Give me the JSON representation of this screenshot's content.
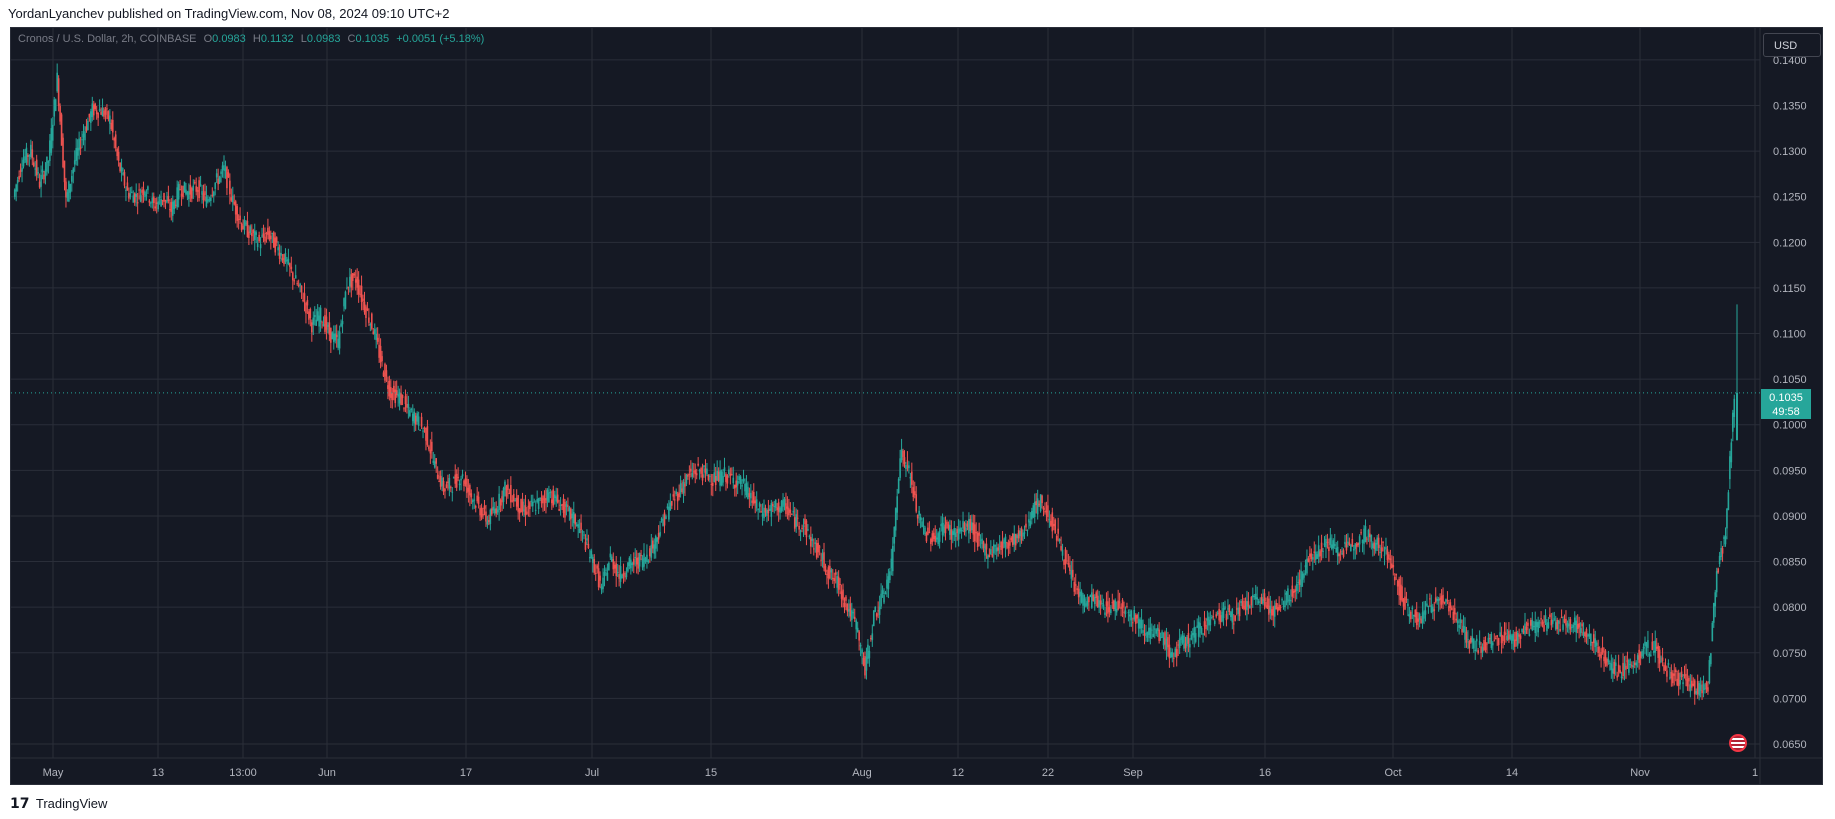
{
  "header": {
    "published_text": "YordanLyanchev published on TradingView.com, Nov 08, 2024 09:10 UTC+2"
  },
  "legend": {
    "symbol": "Cronos / U.S. Dollar, 2h, COINBASE",
    "open_label": "O",
    "open": "0.0983",
    "high_label": "H",
    "high": "0.1132",
    "low_label": "L",
    "low": "0.0983",
    "close_label": "C",
    "close": "0.1035",
    "change": "+0.0051 (+5.18%)"
  },
  "currency_button": "USD",
  "last_price": {
    "value": "0.1035",
    "countdown": "49:58"
  },
  "footer": {
    "logo_glyph": "𝟭𝟳",
    "brand": "TradingView"
  },
  "colors": {
    "background": "#151924",
    "grid": "#2a2e39",
    "up": "#26a69a",
    "down": "#ef5350",
    "axis_text": "#b2b5be",
    "price_tag": "#26a69a"
  },
  "chart_data": {
    "type": "candlestick",
    "title": "Cronos / U.S. Dollar, 2h, COINBASE",
    "ylim": [
      0.0605,
      0.1435
    ],
    "y_ticks": [
      "0.1400",
      "0.1350",
      "0.1300",
      "0.1250",
      "0.1200",
      "0.1150",
      "0.1100",
      "0.1050",
      "0.1000",
      "0.0950",
      "0.0900",
      "0.0850",
      "0.0800",
      "0.0750",
      "0.0700",
      "0.0650"
    ],
    "x_ticks": [
      "May",
      "13",
      "13:00",
      "Jun",
      "17",
      "Jul",
      "15",
      "Aug",
      "12",
      "22",
      "Sep",
      "16",
      "Oct",
      "14",
      "Nov",
      "1"
    ],
    "last_price": 0.1035,
    "grid": true,
    "series": [
      {
        "values": [
          [
            "Apr 26",
            0.125
          ],
          [
            "Apr 27",
            0.129
          ],
          [
            "Apr 28",
            0.13
          ],
          [
            "Apr 29",
            0.1265
          ],
          [
            "Apr 30",
            0.129
          ],
          [
            "May 1",
            0.138
          ],
          [
            "May 2",
            0.1245
          ],
          [
            "May 3",
            0.129
          ],
          [
            "May 4",
            0.132
          ],
          [
            "May 5",
            0.1345
          ],
          [
            "May 6",
            0.1345
          ],
          [
            "May 7",
            0.1335
          ],
          [
            "May 8",
            0.1285
          ],
          [
            "May 9",
            0.1255
          ],
          [
            "May 10",
            0.125
          ],
          [
            "May 11",
            0.126
          ],
          [
            "May 12",
            0.124
          ],
          [
            "May 13",
            0.125
          ],
          [
            "May 14",
            0.1235
          ],
          [
            "May 15",
            0.126
          ],
          [
            "May 16",
            0.1255
          ],
          [
            "May 17",
            0.126
          ],
          [
            "May 18",
            0.1245
          ],
          [
            "May 19",
            0.1265
          ],
          [
            "May 20",
            0.128
          ],
          [
            "May 21",
            0.1245
          ],
          [
            "May 22",
            0.122
          ],
          [
            "May 23",
            0.121
          ],
          [
            "May 24",
            0.12
          ],
          [
            "May 25",
            0.121
          ],
          [
            "May 26",
            0.1195
          ],
          [
            "May 27",
            0.118
          ],
          [
            "May 28",
            0.116
          ],
          [
            "May 29",
            0.114
          ],
          [
            "May 30",
            0.111
          ],
          [
            "May 31",
            0.112
          ],
          [
            "Jun 1",
            0.11
          ],
          [
            "Jun 2",
            0.109
          ],
          [
            "Jun 3",
            0.1155
          ],
          [
            "Jun 4",
            0.116
          ],
          [
            "Jun 5",
            0.113
          ],
          [
            "Jun 6",
            0.1105
          ],
          [
            "Jun 7",
            0.1065
          ],
          [
            "Jun 8",
            0.1035
          ],
          [
            "Jun 9",
            0.103
          ],
          [
            "Jun 10",
            0.1015
          ],
          [
            "Jun 11",
            0.1005
          ],
          [
            "Jun 12",
            0.099
          ],
          [
            "Jun 13",
            0.0955
          ],
          [
            "Jun 14",
            0.093
          ],
          [
            "Jun 15",
            0.0935
          ],
          [
            "Jun 16",
            0.0945
          ],
          [
            "Jun 17",
            0.0925
          ],
          [
            "Jun 18",
            0.091
          ],
          [
            "Jun 19",
            0.0895
          ],
          [
            "Jun 20",
            0.091
          ],
          [
            "Jun 21",
            0.093
          ],
          [
            "Jun 22",
            0.092
          ],
          [
            "Jun 23",
            0.0905
          ],
          [
            "Jun 24",
            0.091
          ],
          [
            "Jun 25",
            0.0915
          ],
          [
            "Jun 26",
            0.0925
          ],
          [
            "Jun 27",
            0.0915
          ],
          [
            "Jun 28",
            0.0905
          ],
          [
            "Jun 29",
            0.0895
          ],
          [
            "Jun 30",
            0.0875
          ],
          [
            "Jul 1",
            0.085
          ],
          [
            "Jul 2",
            0.082
          ],
          [
            "Jul 3",
            0.0855
          ],
          [
            "Jul 4",
            0.0835
          ],
          [
            "Jul 5",
            0.0845
          ],
          [
            "Jul 6",
            0.085
          ],
          [
            "Jul 7",
            0.0855
          ],
          [
            "Jul 8",
            0.087
          ],
          [
            "Jul 9",
            0.0895
          ],
          [
            "Jul 10",
            0.0915
          ],
          [
            "Jul 11",
            0.093
          ],
          [
            "Jul 12",
            0.0945
          ],
          [
            "Jul 13",
            0.095
          ],
          [
            "Jul 14",
            0.0945
          ],
          [
            "Jul 15",
            0.094
          ],
          [
            "Jul 16",
            0.0945
          ],
          [
            "Jul 17",
            0.094
          ],
          [
            "Jul 18",
            0.0935
          ],
          [
            "Jul 19",
            0.092
          ],
          [
            "Jul 20",
            0.0905
          ],
          [
            "Jul 21",
            0.0905
          ],
          [
            "Jul 22",
            0.091
          ],
          [
            "Jul 23",
            0.091
          ],
          [
            "Jul 24",
            0.0895
          ],
          [
            "Jul 25",
            0.089
          ],
          [
            "Jul 26",
            0.087
          ],
          [
            "Jul 27",
            0.0855
          ],
          [
            "Jul 28",
            0.0835
          ],
          [
            "Jul 29",
            0.0825
          ],
          [
            "Jul 30",
            0.08
          ],
          [
            "Jul 31",
            0.078
          ],
          [
            "Aug 1",
            0.073
          ],
          [
            "Aug 2",
            0.079
          ],
          [
            "Aug 3",
            0.081
          ],
          [
            "Aug 4",
            0.0845
          ],
          [
            "Aug 5",
            0.097
          ],
          [
            "Aug 6",
            0.095
          ],
          [
            "Aug 7",
            0.09
          ],
          [
            "Aug 8",
            0.088
          ],
          [
            "Aug 9",
            0.0875
          ],
          [
            "Aug 10",
            0.089
          ],
          [
            "Aug 11",
            0.088
          ],
          [
            "Aug 12",
            0.0885
          ],
          [
            "Aug 13",
            0.089
          ],
          [
            "Aug 14",
            0.087
          ],
          [
            "Aug 15",
            0.086
          ],
          [
            "Aug 16",
            0.0865
          ],
          [
            "Aug 17",
            0.087
          ],
          [
            "Aug 18",
            0.0875
          ],
          [
            "Aug 19",
            0.088
          ],
          [
            "Aug 20",
            0.0905
          ],
          [
            "Aug 21",
            0.0915
          ],
          [
            "Aug 22",
            0.09
          ],
          [
            "Aug 23",
            0.0875
          ],
          [
            "Aug 24",
            0.0845
          ],
          [
            "Aug 25",
            0.082
          ],
          [
            "Aug 26",
            0.0805
          ],
          [
            "Aug 27",
            0.081
          ],
          [
            "Aug 28",
            0.08
          ],
          [
            "Aug 29",
            0.08
          ],
          [
            "Aug 30",
            0.0805
          ],
          [
            "Aug 31",
            0.0795
          ],
          [
            "Sep 1",
            0.0785
          ],
          [
            "Sep 2",
            0.0775
          ],
          [
            "Sep 3",
            0.077
          ],
          [
            "Sep 4",
            0.0765
          ],
          [
            "Sep 5",
            0.0745
          ],
          [
            "Sep 6",
            0.076
          ],
          [
            "Sep 7",
            0.0765
          ],
          [
            "Sep 8",
            0.0775
          ],
          [
            "Sep 9",
            0.0785
          ],
          [
            "Sep 10",
            0.079
          ],
          [
            "Sep 11",
            0.0795
          ],
          [
            "Sep 12",
            0.079
          ],
          [
            "Sep 13",
            0.08
          ],
          [
            "Sep 14",
            0.0805
          ],
          [
            "Sep 15",
            0.081
          ],
          [
            "Sep 16",
            0.08
          ],
          [
            "Sep 17",
            0.0795
          ],
          [
            "Sep 18",
            0.081
          ],
          [
            "Sep 19",
            0.082
          ],
          [
            "Sep 20",
            0.084
          ],
          [
            "Sep 21",
            0.086
          ],
          [
            "Sep 22",
            0.0865
          ],
          [
            "Sep 23",
            0.087
          ],
          [
            "Sep 24",
            0.086
          ],
          [
            "Sep 25",
            0.0865
          ],
          [
            "Sep 26",
            0.0875
          ],
          [
            "Sep 27",
            0.088
          ],
          [
            "Sep 28",
            0.087
          ],
          [
            "Sep 29",
            0.0865
          ],
          [
            "Sep 30",
            0.0845
          ],
          [
            "Oct 1",
            0.0815
          ],
          [
            "Oct 2",
            0.0795
          ],
          [
            "Oct 3",
            0.0785
          ],
          [
            "Oct 4",
            0.08
          ],
          [
            "Oct 5",
            0.0805
          ],
          [
            "Oct 6",
            0.081
          ],
          [
            "Oct 7",
            0.0795
          ],
          [
            "Oct 8",
            0.0775
          ],
          [
            "Oct 9",
            0.076
          ],
          [
            "Oct 10",
            0.0755
          ],
          [
            "Oct 11",
            0.076
          ],
          [
            "Oct 12",
            0.0765
          ],
          [
            "Oct 13",
            0.077
          ],
          [
            "Oct 14",
            0.0765
          ],
          [
            "Oct 15",
            0.0775
          ],
          [
            "Oct 16",
            0.078
          ],
          [
            "Oct 17",
            0.078
          ],
          [
            "Oct 18",
            0.0785
          ],
          [
            "Oct 19",
            0.078
          ],
          [
            "Oct 20",
            0.0785
          ],
          [
            "Oct 21",
            0.078
          ],
          [
            "Oct 22",
            0.077
          ],
          [
            "Oct 23",
            0.076
          ],
          [
            "Oct 24",
            0.075
          ],
          [
            "Oct 25",
            0.0735
          ],
          [
            "Oct 26",
            0.073
          ],
          [
            "Oct 27",
            0.0735
          ],
          [
            "Oct 28",
            0.0745
          ],
          [
            "Oct 29",
            0.0755
          ],
          [
            "Oct 30",
            0.0755
          ],
          [
            "Oct 31",
            0.0735
          ],
          [
            "Nov 1",
            0.0725
          ],
          [
            "Nov 2",
            0.072
          ],
          [
            "Nov 3",
            0.0715
          ],
          [
            "Nov 4",
            0.071
          ],
          [
            "Nov 5",
            0.0715
          ],
          [
            "Nov 6",
            0.084
          ],
          [
            "Nov 7",
            0.088
          ],
          [
            "Nov 8",
            0.1035
          ]
        ]
      }
    ]
  }
}
